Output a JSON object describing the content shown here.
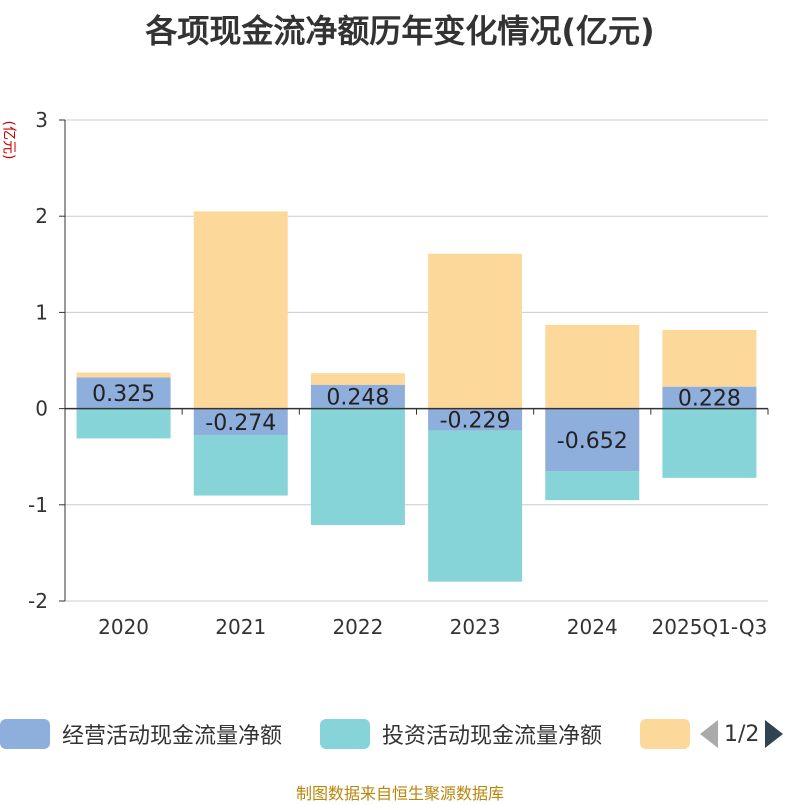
{
  "chart_data": {
    "type": "bar",
    "stacked": true,
    "title": "各项现金流净额历年变化情况(亿元)",
    "ylabel": "(亿元)",
    "xlabel": "",
    "ylim": [
      -2,
      3
    ],
    "yticks": [
      -2,
      -1,
      0,
      1,
      2,
      3
    ],
    "categories": [
      "2020",
      "2021",
      "2022",
      "2023",
      "2024",
      "2025Q1-Q3"
    ],
    "series": [
      {
        "name": "经营活动现金流量净额",
        "color": "#8eaedc",
        "values": [
          0.325,
          -0.274,
          0.248,
          -0.229,
          -0.652,
          0.228
        ],
        "labels": [
          "0.325",
          "-0.274",
          "0.248",
          "-0.229",
          "-0.652",
          "0.228"
        ]
      },
      {
        "name": "投资活动现金流量净额",
        "color": "#86d4d8",
        "values": [
          -0.31,
          -0.63,
          -1.21,
          -1.57,
          -0.3,
          -0.72
        ]
      },
      {
        "name": "",
        "color": "#fdd89b",
        "values": [
          0.05,
          2.05,
          0.12,
          1.61,
          0.87,
          0.59
        ]
      }
    ]
  },
  "legend": {
    "items": [
      "经营活动现金流量净额",
      "投资活动现金流量净额",
      ""
    ],
    "pager": "1/2"
  },
  "source": "制图数据来自恒生聚源数据库"
}
